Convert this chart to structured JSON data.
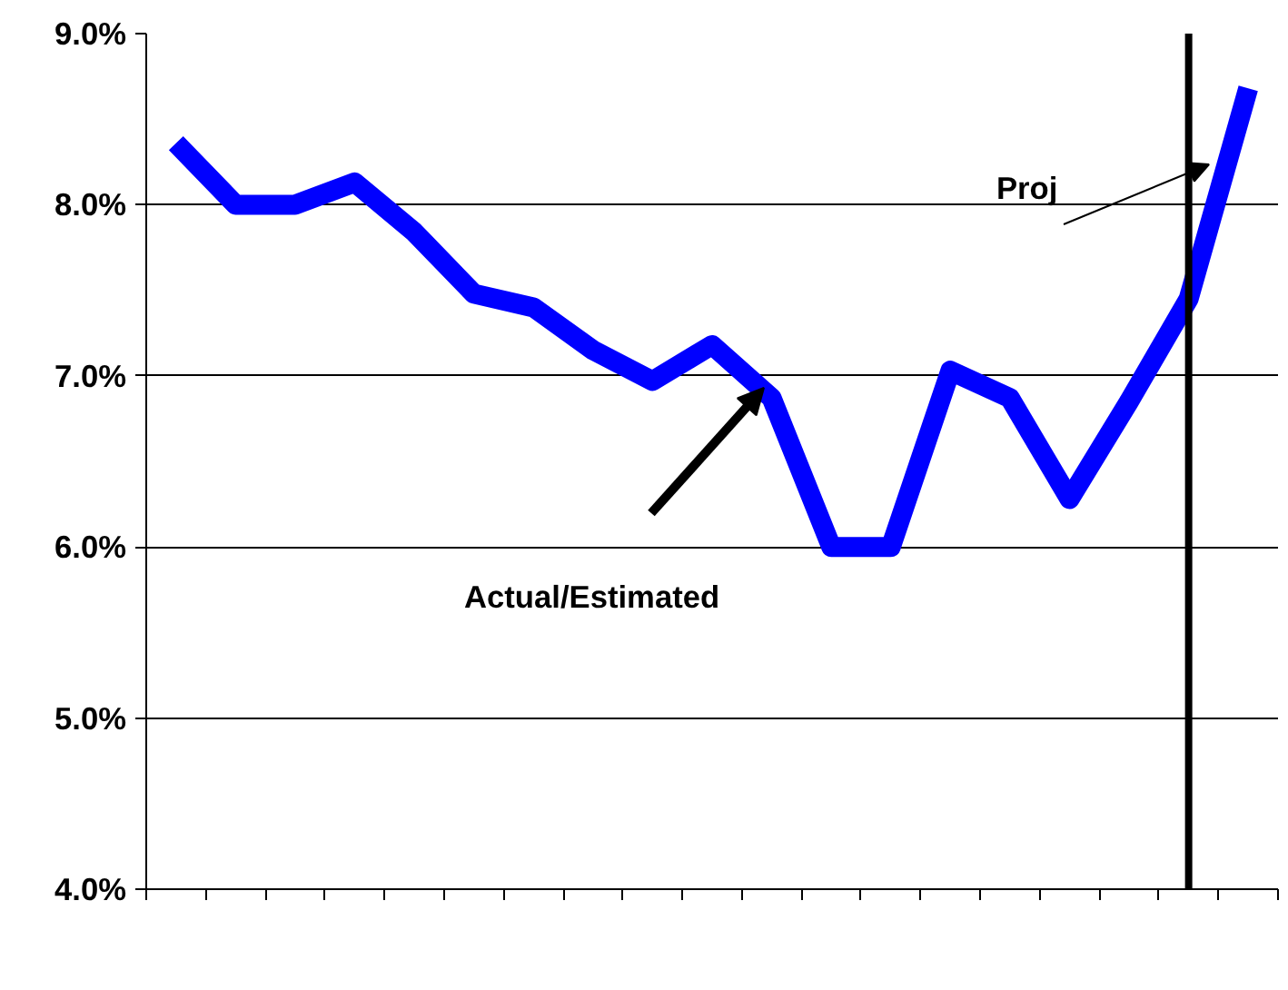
{
  "chart_data": {
    "type": "line",
    "categories": [
      null,
      null,
      null,
      null,
      null,
      null,
      null,
      null,
      null,
      null,
      null,
      null,
      null,
      null,
      null,
      null,
      null,
      null,
      null
    ],
    "series": [
      {
        "color": "#0000ff",
        "values": [
          8.36,
          8.0,
          8.0,
          8.13,
          7.84,
          7.48,
          7.4,
          7.15,
          6.97,
          7.18,
          6.87,
          6.0,
          6.0,
          7.03,
          6.87,
          6.28,
          6.85,
          7.45,
          8.68
        ]
      }
    ],
    "ylim": [
      4,
      9
    ],
    "yticks": [
      {
        "value": 4,
        "label": "4.0%"
      },
      {
        "value": 5,
        "label": "5.0%"
      },
      {
        "value": 6,
        "label": "6.0%"
      },
      {
        "value": 7,
        "label": "7.0%"
      },
      {
        "value": 8,
        "label": "8.0%"
      },
      {
        "value": 9,
        "label": "9.0%"
      }
    ],
    "grid": "y",
    "tick_labels": "y",
    "line_style": "solid",
    "marker": "none",
    "annotations": [
      "Proj",
      "Actual/Estimated"
    ]
  }
}
